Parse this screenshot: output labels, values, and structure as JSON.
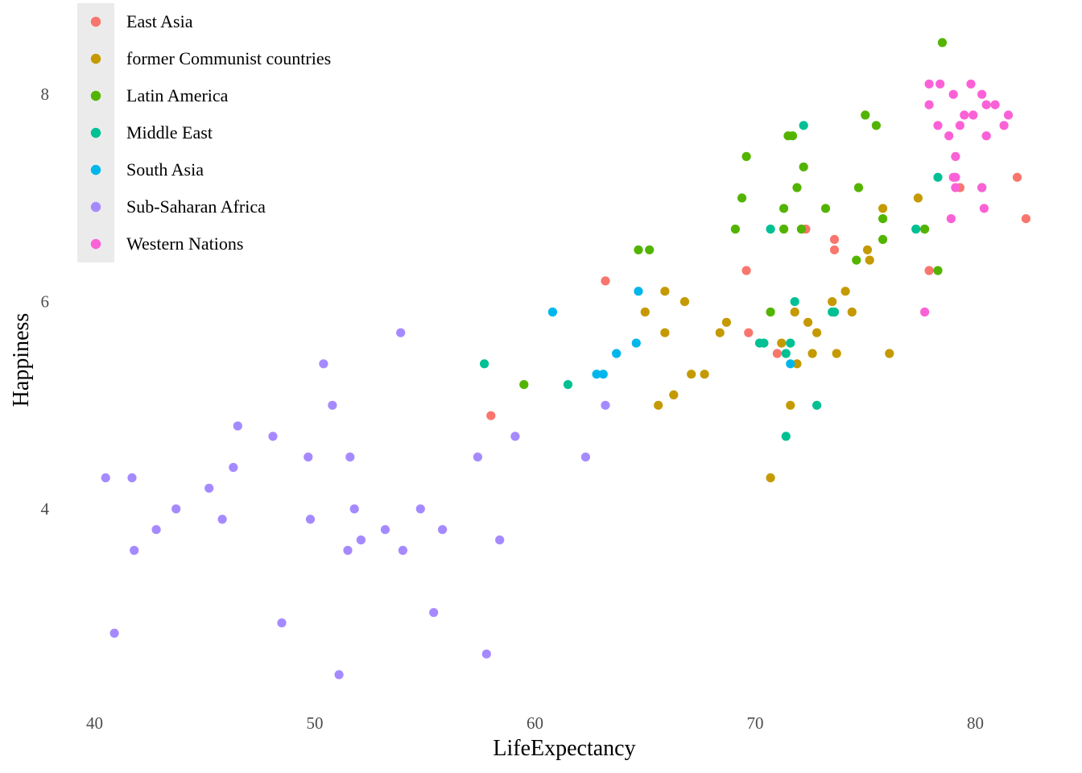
{
  "chart_data": {
    "type": "scatter",
    "xlabel": "LifeExpectancy",
    "ylabel": "Happiness",
    "xlim": [
      39.2,
      83.0
    ],
    "ylim": [
      2.1,
      8.95
    ],
    "x_ticks": [
      40,
      50,
      60,
      70,
      80
    ],
    "y_ticks": [
      4,
      6,
      8
    ],
    "grid": false,
    "legend_position": "top-left",
    "series": [
      {
        "name": "East Asia",
        "color": "#F8766D",
        "points": [
          [
            58.0,
            4.9
          ],
          [
            63.2,
            6.2
          ],
          [
            69.6,
            6.3
          ],
          [
            69.7,
            5.7
          ],
          [
            71.0,
            5.5
          ],
          [
            72.3,
            6.7
          ],
          [
            73.6,
            6.6
          ],
          [
            73.6,
            6.5
          ],
          [
            77.9,
            6.3
          ],
          [
            79.3,
            7.1
          ],
          [
            81.9,
            7.2
          ],
          [
            82.3,
            6.8
          ]
        ]
      },
      {
        "name": "former Communist countries",
        "color": "#C49A00",
        "points": [
          [
            65.0,
            5.9
          ],
          [
            65.9,
            6.1
          ],
          [
            65.9,
            5.7
          ],
          [
            65.6,
            5.0
          ],
          [
            66.3,
            5.1
          ],
          [
            66.8,
            6.0
          ],
          [
            67.1,
            5.3
          ],
          [
            67.7,
            5.3
          ],
          [
            68.4,
            5.7
          ],
          [
            68.7,
            5.8
          ],
          [
            70.7,
            4.3
          ],
          [
            71.2,
            5.6
          ],
          [
            71.6,
            5.0
          ],
          [
            71.8,
            5.9
          ],
          [
            71.9,
            5.4
          ],
          [
            72.4,
            5.8
          ],
          [
            72.6,
            5.5
          ],
          [
            72.8,
            5.7
          ],
          [
            73.5,
            6.0
          ],
          [
            73.7,
            5.5
          ],
          [
            74.1,
            6.1
          ],
          [
            74.4,
            5.9
          ],
          [
            75.1,
            6.5
          ],
          [
            75.2,
            6.4
          ],
          [
            75.8,
            6.9
          ],
          [
            76.1,
            5.5
          ],
          [
            77.4,
            7.0
          ]
        ]
      },
      {
        "name": "Latin America",
        "color": "#53B400",
        "points": [
          [
            59.5,
            5.2
          ],
          [
            64.7,
            6.5
          ],
          [
            65.2,
            6.5
          ],
          [
            69.1,
            6.7
          ],
          [
            69.4,
            7.0
          ],
          [
            69.6,
            7.4
          ],
          [
            70.7,
            5.9
          ],
          [
            71.3,
            6.9
          ],
          [
            71.3,
            6.7
          ],
          [
            71.5,
            7.6
          ],
          [
            71.7,
            7.6
          ],
          [
            71.9,
            7.1
          ],
          [
            72.1,
            6.7
          ],
          [
            72.2,
            7.3
          ],
          [
            73.2,
            6.9
          ],
          [
            74.6,
            6.4
          ],
          [
            74.7,
            7.1
          ],
          [
            75.0,
            7.8
          ],
          [
            75.5,
            7.7
          ],
          [
            75.8,
            6.8
          ],
          [
            75.8,
            6.6
          ],
          [
            77.7,
            6.7
          ],
          [
            78.3,
            6.3
          ],
          [
            78.5,
            8.5
          ]
        ]
      },
      {
        "name": "Middle East",
        "color": "#00C094",
        "points": [
          [
            57.7,
            5.4
          ],
          [
            61.5,
            5.2
          ],
          [
            70.2,
            5.6
          ],
          [
            70.4,
            5.6
          ],
          [
            70.7,
            6.7
          ],
          [
            71.4,
            4.7
          ],
          [
            71.4,
            5.5
          ],
          [
            71.6,
            5.6
          ],
          [
            71.8,
            6.0
          ],
          [
            72.2,
            7.7
          ],
          [
            72.8,
            5.0
          ],
          [
            73.5,
            5.9
          ],
          [
            73.6,
            5.9
          ],
          [
            77.3,
            6.7
          ],
          [
            78.3,
            7.2
          ],
          [
            80.3,
            7.1
          ]
        ]
      },
      {
        "name": "South Asia",
        "color": "#00B6EB",
        "points": [
          [
            60.8,
            5.9
          ],
          [
            62.8,
            5.3
          ],
          [
            63.1,
            5.3
          ],
          [
            63.7,
            5.5
          ],
          [
            64.6,
            5.6
          ],
          [
            64.7,
            6.1
          ],
          [
            71.6,
            5.4
          ]
        ]
      },
      {
        "name": "Sub-Saharan Africa",
        "color": "#A58AFF",
        "points": [
          [
            40.5,
            4.3
          ],
          [
            40.9,
            2.8
          ],
          [
            41.7,
            4.3
          ],
          [
            41.8,
            3.6
          ],
          [
            42.8,
            3.8
          ],
          [
            43.7,
            4.0
          ],
          [
            45.2,
            4.2
          ],
          [
            45.8,
            3.9
          ],
          [
            46.3,
            4.4
          ],
          [
            46.5,
            4.8
          ],
          [
            48.1,
            4.7
          ],
          [
            48.5,
            2.9
          ],
          [
            49.7,
            4.5
          ],
          [
            49.8,
            3.9
          ],
          [
            50.4,
            5.4
          ],
          [
            50.8,
            5.0
          ],
          [
            51.1,
            2.4
          ],
          [
            51.5,
            3.6
          ],
          [
            51.6,
            4.5
          ],
          [
            51.8,
            4.0
          ],
          [
            52.1,
            3.7
          ],
          [
            53.2,
            3.8
          ],
          [
            53.9,
            5.7
          ],
          [
            54.0,
            3.6
          ],
          [
            54.8,
            4.0
          ],
          [
            55.4,
            3.0
          ],
          [
            55.8,
            3.8
          ],
          [
            57.4,
            4.5
          ],
          [
            57.8,
            2.6
          ],
          [
            58.4,
            3.7
          ],
          [
            59.1,
            4.7
          ],
          [
            62.3,
            4.5
          ],
          [
            63.2,
            5.0
          ]
        ]
      },
      {
        "name": "Western Nations",
        "color": "#FB61D7",
        "points": [
          [
            77.7,
            5.9
          ],
          [
            77.9,
            8.1
          ],
          [
            77.9,
            7.9
          ],
          [
            78.3,
            7.7
          ],
          [
            78.4,
            8.1
          ],
          [
            78.8,
            7.6
          ],
          [
            78.9,
            6.8
          ],
          [
            79.0,
            7.2
          ],
          [
            79.0,
            8.0
          ],
          [
            79.1,
            7.4
          ],
          [
            79.1,
            7.1
          ],
          [
            79.1,
            7.2
          ],
          [
            79.3,
            7.7
          ],
          [
            79.5,
            7.8
          ],
          [
            79.8,
            8.1
          ],
          [
            79.9,
            7.8
          ],
          [
            80.3,
            7.1
          ],
          [
            80.3,
            8.0
          ],
          [
            80.4,
            6.9
          ],
          [
            80.5,
            7.9
          ],
          [
            80.5,
            7.6
          ],
          [
            80.9,
            7.9
          ],
          [
            81.3,
            7.7
          ],
          [
            81.5,
            7.8
          ]
        ]
      }
    ]
  }
}
